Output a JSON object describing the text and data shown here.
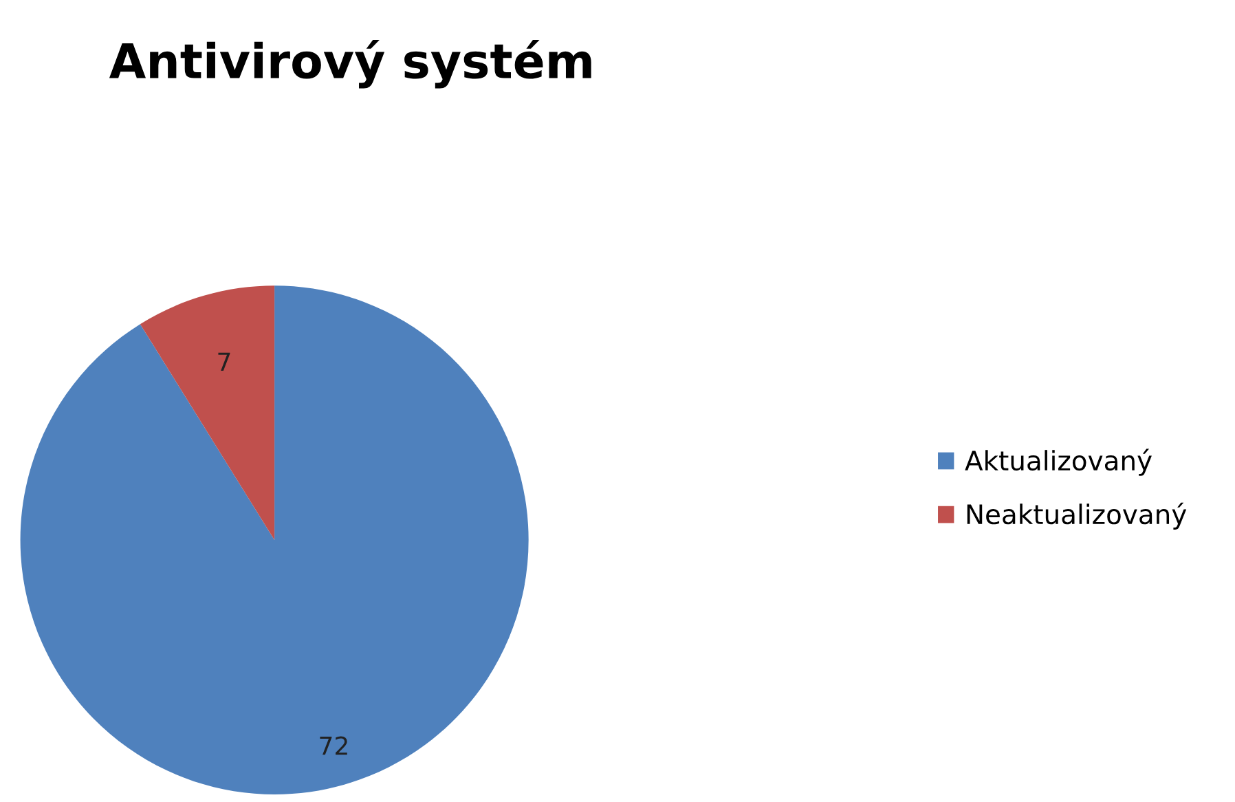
{
  "chart_data": {
    "type": "pie",
    "title": "Antivirový systém",
    "categories": [
      "Aktualizovaný",
      "Neaktualizovaný"
    ],
    "values": [
      72,
      7
    ],
    "colors": [
      "#4f81bd",
      "#c0504d"
    ],
    "data_labels": true,
    "legend": "right"
  }
}
